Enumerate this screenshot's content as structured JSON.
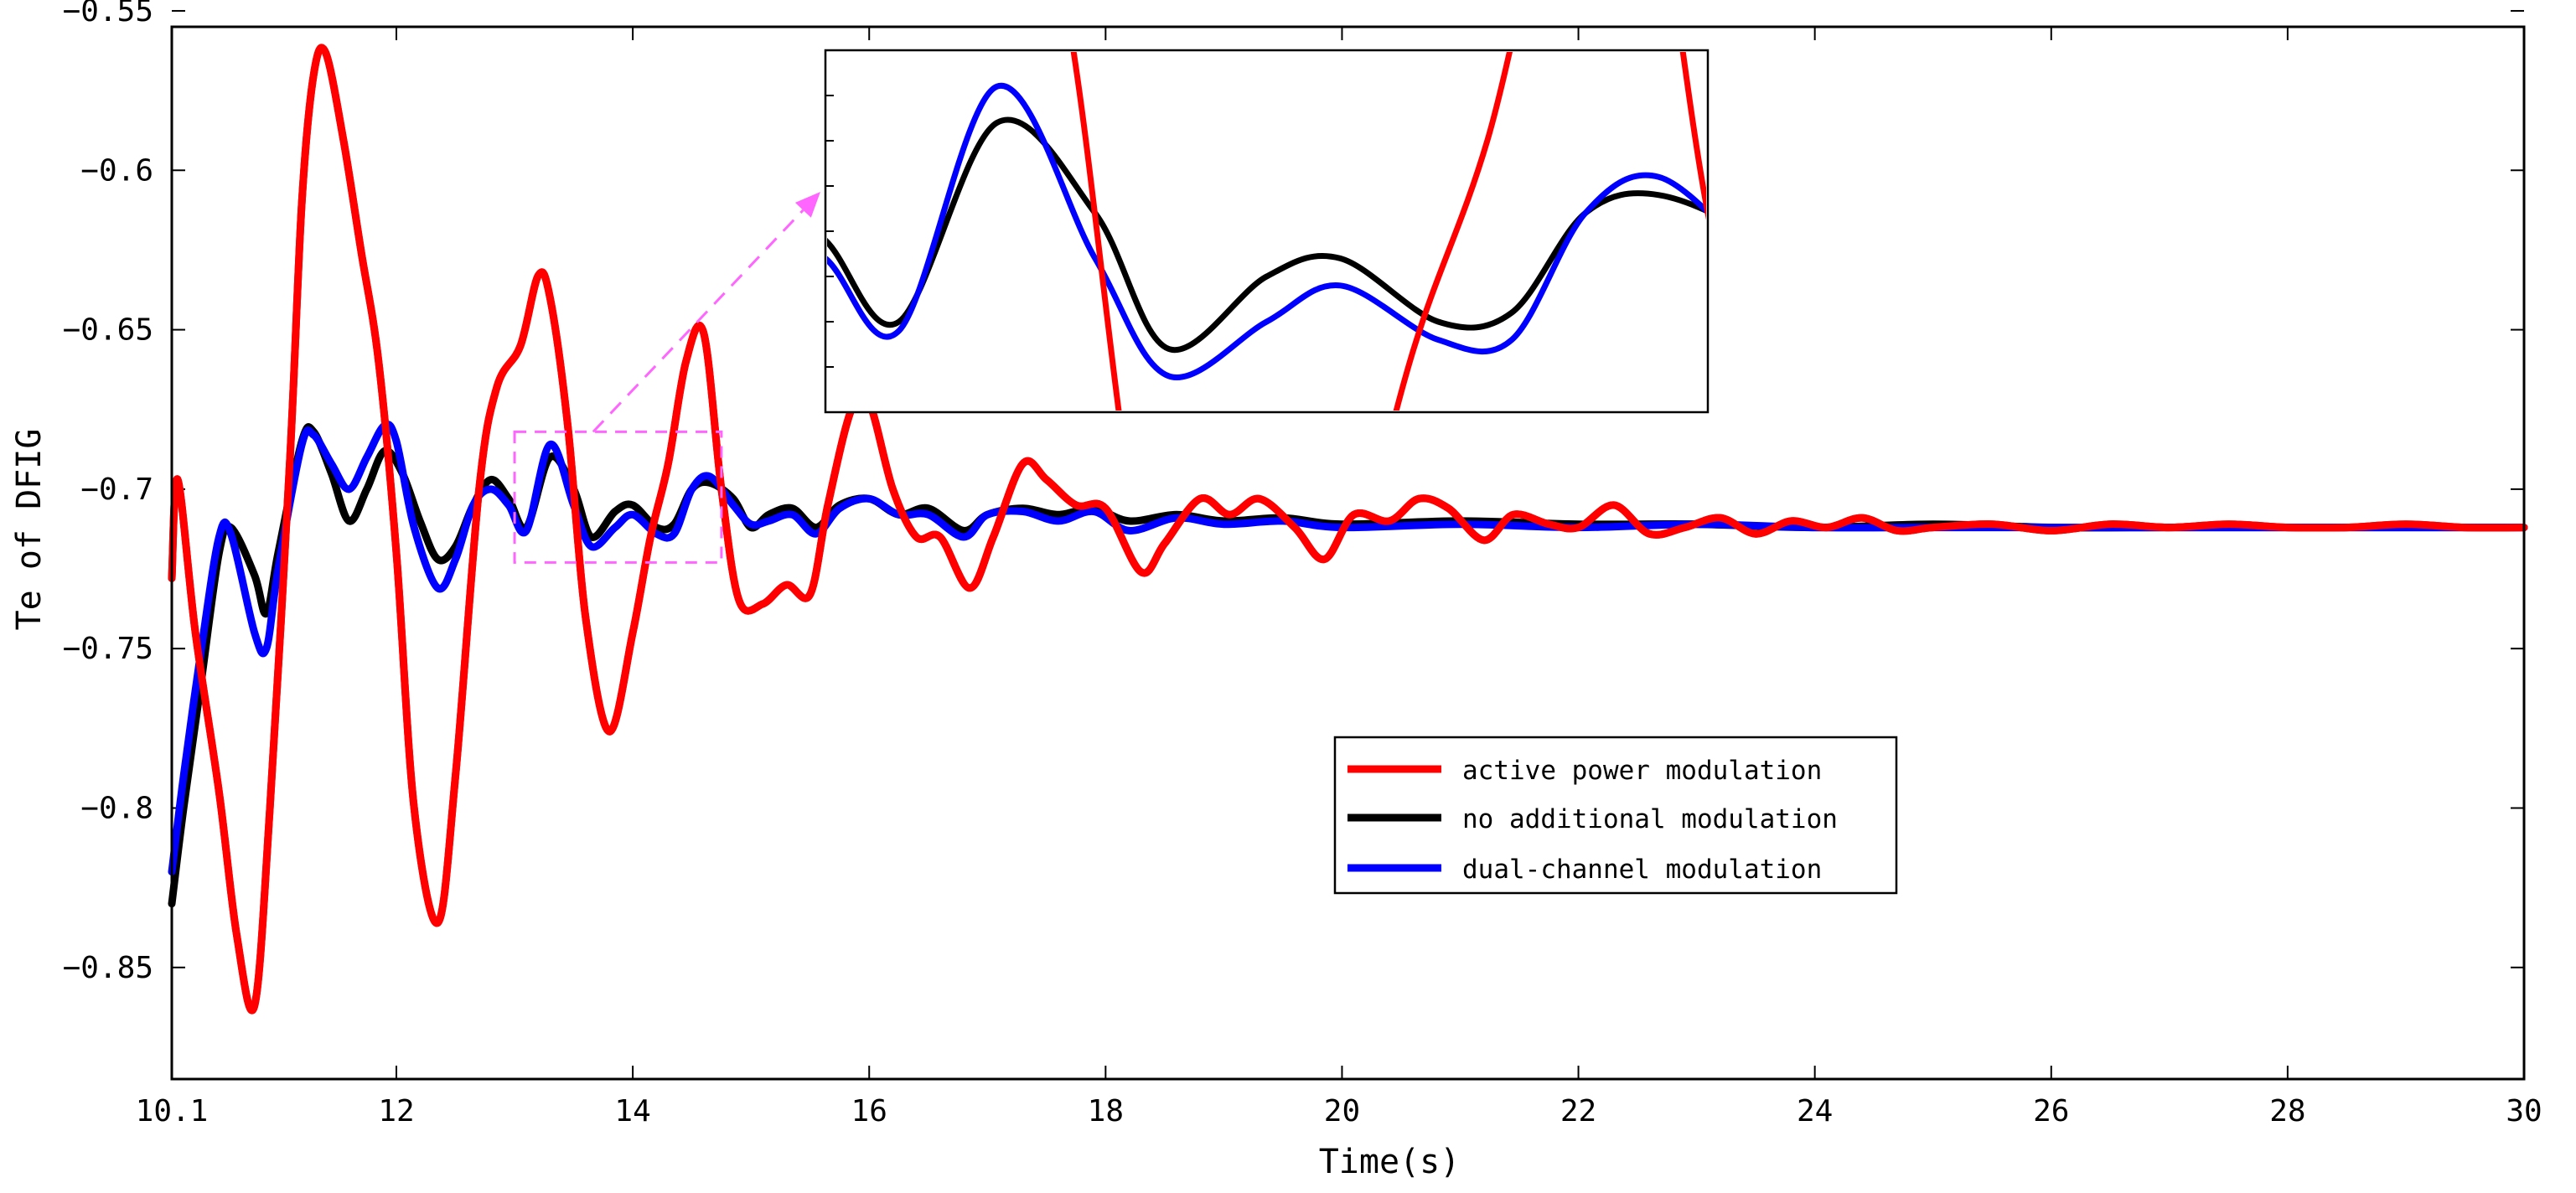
{
  "chart_data": {
    "type": "line",
    "title": "",
    "xlabel": "Time(s)",
    "ylabel": "Te of DFIG",
    "xlim": [
      10.1,
      30
    ],
    "ylim": [
      -0.885,
      -0.555
    ],
    "xticks": [
      10.1,
      12,
      14,
      16,
      18,
      20,
      22,
      24,
      26,
      28,
      30
    ],
    "xtick_labels": [
      "10.1",
      "12",
      "14",
      "16",
      "18",
      "20",
      "22",
      "24",
      "26",
      "28",
      "30"
    ],
    "yticks": [
      -0.55,
      -0.6,
      -0.65,
      -0.7,
      -0.75,
      -0.8,
      -0.85
    ],
    "ytick_labels": [
      "−0.55",
      "−0.6",
      "−0.65",
      "−0.7",
      "−0.75",
      "−0.8",
      "−0.85"
    ],
    "legend_position": "center-right",
    "series": [
      {
        "name": "active power modulation",
        "color": "#ff0000",
        "x": [
          10.1,
          10.15,
          10.3,
          10.5,
          10.65,
          10.8,
          10.93,
          11.1,
          11.2,
          11.3,
          11.4,
          11.55,
          11.7,
          11.85,
          12.0,
          12.15,
          12.35,
          12.5,
          12.7,
          12.85,
          13.05,
          13.2,
          13.3,
          13.45,
          13.6,
          13.8,
          14.0,
          14.15,
          14.3,
          14.45,
          14.6,
          14.75,
          14.9,
          15.1,
          15.3,
          15.5,
          15.65,
          15.85,
          16.0,
          16.2,
          16.4,
          16.6,
          16.85,
          17.05,
          17.3,
          17.5,
          17.75,
          18.0,
          18.3,
          18.5,
          18.8,
          19.05,
          19.3,
          19.6,
          19.85,
          20.1,
          20.4,
          20.65,
          20.9,
          21.2,
          21.45,
          21.75,
          22.0,
          22.3,
          22.6,
          22.9,
          23.2,
          23.5,
          23.8,
          24.1,
          24.4,
          24.7,
          25.0,
          25.5,
          26.0,
          26.5,
          27.0,
          27.5,
          28.0,
          28.5,
          29.0,
          29.5,
          30.0
        ],
        "values": [
          -0.728,
          -0.697,
          -0.745,
          -0.795,
          -0.84,
          -0.862,
          -0.8,
          -0.69,
          -0.61,
          -0.57,
          -0.563,
          -0.59,
          -0.625,
          -0.66,
          -0.72,
          -0.8,
          -0.836,
          -0.79,
          -0.7,
          -0.668,
          -0.655,
          -0.633,
          -0.64,
          -0.68,
          -0.74,
          -0.776,
          -0.745,
          -0.715,
          -0.692,
          -0.66,
          -0.651,
          -0.7,
          -0.735,
          -0.736,
          -0.73,
          -0.733,
          -0.705,
          -0.675,
          -0.673,
          -0.7,
          -0.715,
          -0.715,
          -0.731,
          -0.715,
          -0.692,
          -0.697,
          -0.705,
          -0.706,
          -0.726,
          -0.717,
          -0.703,
          -0.708,
          -0.703,
          -0.712,
          -0.722,
          -0.708,
          -0.71,
          -0.703,
          -0.706,
          -0.716,
          -0.708,
          -0.711,
          -0.712,
          -0.705,
          -0.714,
          -0.712,
          -0.709,
          -0.714,
          -0.71,
          -0.712,
          -0.709,
          -0.713,
          -0.712,
          -0.711,
          -0.713,
          -0.711,
          -0.712,
          -0.711,
          -0.712,
          -0.712,
          -0.711,
          -0.712,
          -0.712
        ]
      },
      {
        "name": "no additional modulation",
        "color": "#000000",
        "x": [
          10.1,
          10.2,
          10.35,
          10.5,
          10.6,
          10.8,
          10.9,
          11.0,
          11.2,
          11.3,
          11.45,
          11.6,
          11.75,
          11.9,
          12.05,
          12.2,
          12.35,
          12.5,
          12.65,
          12.8,
          12.95,
          13.1,
          13.3,
          13.5,
          13.65,
          13.85,
          14.0,
          14.2,
          14.35,
          14.5,
          14.65,
          14.85,
          15.0,
          15.15,
          15.35,
          15.55,
          15.75,
          16.0,
          16.25,
          16.5,
          16.8,
          17.0,
          17.3,
          17.6,
          17.9,
          18.2,
          18.6,
          19.0,
          19.5,
          20.0,
          21.0,
          22.0,
          23.0,
          24.0,
          25.0,
          26.0,
          27.0,
          28.0,
          29.0,
          30.0
        ],
        "values": [
          -0.83,
          -0.8,
          -0.76,
          -0.72,
          -0.712,
          -0.727,
          -0.739,
          -0.72,
          -0.685,
          -0.682,
          -0.695,
          -0.71,
          -0.7,
          -0.688,
          -0.695,
          -0.71,
          -0.722,
          -0.718,
          -0.705,
          -0.697,
          -0.703,
          -0.712,
          -0.69,
          -0.7,
          -0.715,
          -0.707,
          -0.705,
          -0.712,
          -0.711,
          -0.7,
          -0.698,
          -0.703,
          -0.712,
          -0.708,
          -0.706,
          -0.712,
          -0.705,
          -0.703,
          -0.708,
          -0.706,
          -0.713,
          -0.708,
          -0.706,
          -0.708,
          -0.706,
          -0.71,
          -0.708,
          -0.71,
          -0.709,
          -0.711,
          -0.71,
          -0.711,
          -0.711,
          -0.712,
          -0.711,
          -0.712,
          -0.712,
          -0.712,
          -0.712,
          -0.712
        ]
      },
      {
        "name": "dual-channel modulation",
        "color": "#0000ff",
        "x": [
          10.1,
          10.2,
          10.35,
          10.5,
          10.6,
          10.8,
          10.9,
          11.0,
          11.2,
          11.3,
          11.45,
          11.6,
          11.75,
          11.9,
          12.0,
          12.15,
          12.35,
          12.5,
          12.65,
          12.8,
          12.95,
          13.1,
          13.3,
          13.5,
          13.65,
          13.85,
          14.0,
          14.2,
          14.35,
          14.5,
          14.65,
          14.85,
          15.0,
          15.15,
          15.35,
          15.55,
          15.75,
          16.0,
          16.25,
          16.5,
          16.8,
          17.0,
          17.3,
          17.6,
          17.9,
          18.2,
          18.6,
          19.0,
          19.5,
          20.0,
          21.0,
          22.0,
          23.0,
          24.0,
          25.0,
          26.0,
          27.0,
          28.0,
          29.0,
          30.0
        ],
        "values": [
          -0.82,
          -0.79,
          -0.75,
          -0.715,
          -0.714,
          -0.745,
          -0.75,
          -0.725,
          -0.686,
          -0.683,
          -0.692,
          -0.7,
          -0.69,
          -0.68,
          -0.685,
          -0.712,
          -0.731,
          -0.722,
          -0.705,
          -0.7,
          -0.705,
          -0.713,
          -0.686,
          -0.705,
          -0.718,
          -0.712,
          -0.708,
          -0.714,
          -0.714,
          -0.7,
          -0.696,
          -0.705,
          -0.711,
          -0.71,
          -0.708,
          -0.714,
          -0.706,
          -0.703,
          -0.708,
          -0.708,
          -0.715,
          -0.708,
          -0.707,
          -0.71,
          -0.707,
          -0.713,
          -0.709,
          -0.711,
          -0.71,
          -0.712,
          -0.711,
          -0.712,
          -0.711,
          -0.712,
          -0.712,
          -0.712,
          -0.712,
          -0.712,
          -0.712,
          -0.712
        ]
      }
    ],
    "inset": {
      "description": "zoomed view",
      "xlim": [
        12.95,
        14.75
      ],
      "ylim": [
        -0.722,
        -0.682
      ],
      "source_box_x": [
        13.0,
        14.75
      ],
      "source_box_y": [
        -0.723,
        -0.682
      ]
    }
  }
}
